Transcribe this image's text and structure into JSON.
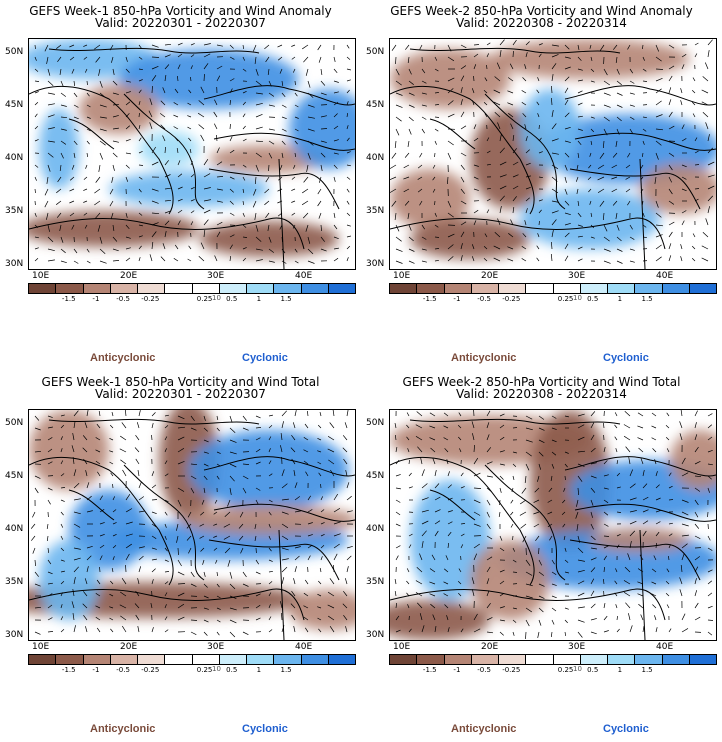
{
  "panels": [
    {
      "title": "GEFS Week-1 850-hPa Vorticity and Wind Anomaly",
      "valid": "Valid: 20220301 - 20220307"
    },
    {
      "title": "GEFS Week-2 850-hPa Vorticity and Wind Anomaly",
      "valid": "Valid: 20220308 - 20220314"
    },
    {
      "title": "GEFS Week-1 850-hPa Vorticity and Wind Total",
      "valid": "Valid: 20220301 - 20220307"
    },
    {
      "title": "GEFS Week-2 850-hPa Vorticity and Wind Total",
      "valid": "Valid: 20220308 - 20220314"
    }
  ],
  "axes": {
    "lat_labels": [
      "50N",
      "45N",
      "40N",
      "35N",
      "30N"
    ],
    "lon_labels": [
      "10E",
      "20E",
      "30E",
      "40E"
    ]
  },
  "colorbar": {
    "labels": [
      "-1.5",
      "-1",
      "-0.5",
      "-0.25",
      "0.25",
      "0.5",
      "1",
      "1.5"
    ],
    "unit_label": "10",
    "colors": [
      "#6f4436",
      "#8c5a4a",
      "#b58575",
      "#d8b3a6",
      "#efdcd4",
      "#ffffff",
      "#ffffff",
      "#cdeefb",
      "#9fdcf7",
      "#6cb6ef",
      "#3f8fe3",
      "#1f6fd6"
    ]
  },
  "legend": {
    "anticyclonic": "Anticyclonic",
    "cyclonic": "Cyclonic"
  }
}
